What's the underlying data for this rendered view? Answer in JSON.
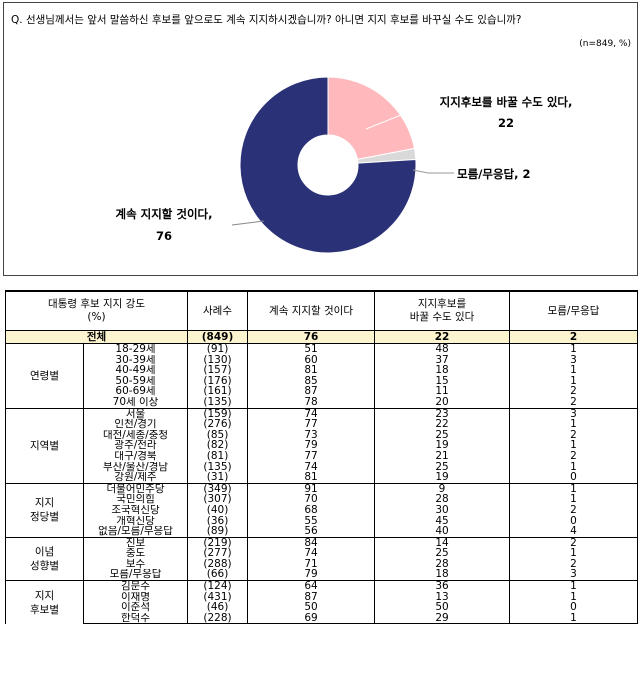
{
  "question": "Q. 선생님께서는 앞서 말씀하신 후보를 앞으로도 계속 지지하시겠습니까? 아니면 지지 후보를 바꾸실 수도 있습니까?",
  "unit_note": "(n=849, %)",
  "colors": {
    "keep": "#2B3177",
    "change": "#FFB9BC",
    "unknown": "#D9D9D9"
  },
  "chart_data": {
    "type": "pie",
    "donut": true,
    "slices": [
      {
        "label": "지지후보를 바꿀 수도 있다,",
        "value": 22
      },
      {
        "label": "모름/무응답,",
        "value": 2
      },
      {
        "label": "계속 지지할 것이다,",
        "value": 76
      }
    ]
  },
  "table": {
    "headers": {
      "group_line1": "대통령 후보 지지 강도",
      "group_line2": "(%)",
      "n": "사례수",
      "keep": "계속 지지할 것이다",
      "change_line1": "지지후보를",
      "change_line2": "바꿀 수도 있다",
      "unknown": "모름/무응답"
    },
    "total": {
      "label": "전체",
      "n": "(849)",
      "keep": "76",
      "change": "22",
      "unknown": "2"
    },
    "groups": [
      {
        "name": "연령별",
        "rows": [
          {
            "label": "18-29세",
            "n": "(91)",
            "keep": "51",
            "change": "48",
            "unknown": "1"
          },
          {
            "label": "30-39세",
            "n": "(130)",
            "keep": "60",
            "change": "37",
            "unknown": "3"
          },
          {
            "label": "40-49세",
            "n": "(157)",
            "keep": "81",
            "change": "18",
            "unknown": "1"
          },
          {
            "label": "50-59세",
            "n": "(176)",
            "keep": "85",
            "change": "15",
            "unknown": "1"
          },
          {
            "label": "60-69세",
            "n": "(161)",
            "keep": "87",
            "change": "11",
            "unknown": "2"
          },
          {
            "label": "70세 이상",
            "n": "(135)",
            "keep": "78",
            "change": "20",
            "unknown": "2"
          }
        ]
      },
      {
        "name": "지역별",
        "rows": [
          {
            "label": "서울",
            "n": "(159)",
            "keep": "74",
            "change": "23",
            "unknown": "3"
          },
          {
            "label": "인천/경기",
            "n": "(276)",
            "keep": "77",
            "change": "22",
            "unknown": "1"
          },
          {
            "label": "대전/세종/충청",
            "n": "(85)",
            "keep": "73",
            "change": "25",
            "unknown": "2"
          },
          {
            "label": "광주/전라",
            "n": "(82)",
            "keep": "79",
            "change": "19",
            "unknown": "1"
          },
          {
            "label": "대구/경북",
            "n": "(81)",
            "keep": "77",
            "change": "21",
            "unknown": "2"
          },
          {
            "label": "부산/울산/경남",
            "n": "(135)",
            "keep": "74",
            "change": "25",
            "unknown": "1"
          },
          {
            "label": "강원/제주",
            "n": "(31)",
            "keep": "81",
            "change": "19",
            "unknown": "0"
          }
        ]
      },
      {
        "name": "지지\n정당별",
        "rows": [
          {
            "label": "더불어민주당",
            "n": "(349)",
            "keep": "91",
            "change": "9",
            "unknown": "1"
          },
          {
            "label": "국민의힘",
            "n": "(307)",
            "keep": "70",
            "change": "28",
            "unknown": "1"
          },
          {
            "label": "조국혁신당",
            "n": "(40)",
            "keep": "68",
            "change": "30",
            "unknown": "2"
          },
          {
            "label": "개혁신당",
            "n": "(36)",
            "keep": "55",
            "change": "45",
            "unknown": "0"
          },
          {
            "label": "없음/모름/무응답",
            "n": "(89)",
            "keep": "56",
            "change": "40",
            "unknown": "4"
          }
        ]
      },
      {
        "name": "이념\n성향별",
        "rows": [
          {
            "label": "진보",
            "n": "(219)",
            "keep": "84",
            "change": "14",
            "unknown": "2"
          },
          {
            "label": "중도",
            "n": "(277)",
            "keep": "74",
            "change": "25",
            "unknown": "1"
          },
          {
            "label": "보수",
            "n": "(288)",
            "keep": "71",
            "change": "28",
            "unknown": "2"
          },
          {
            "label": "모름/무응답",
            "n": "(66)",
            "keep": "79",
            "change": "18",
            "unknown": "3"
          }
        ]
      },
      {
        "name": "지지\n후보별",
        "rows": [
          {
            "label": "김문수",
            "n": "(124)",
            "keep": "64",
            "change": "36",
            "unknown": "1"
          },
          {
            "label": "이재명",
            "n": "(431)",
            "keep": "87",
            "change": "13",
            "unknown": "1"
          },
          {
            "label": "이준석",
            "n": "(46)",
            "keep": "50",
            "change": "50",
            "unknown": "0"
          },
          {
            "label": "한덕수",
            "n": "(228)",
            "keep": "69",
            "change": "29",
            "unknown": "1"
          }
        ]
      }
    ]
  }
}
